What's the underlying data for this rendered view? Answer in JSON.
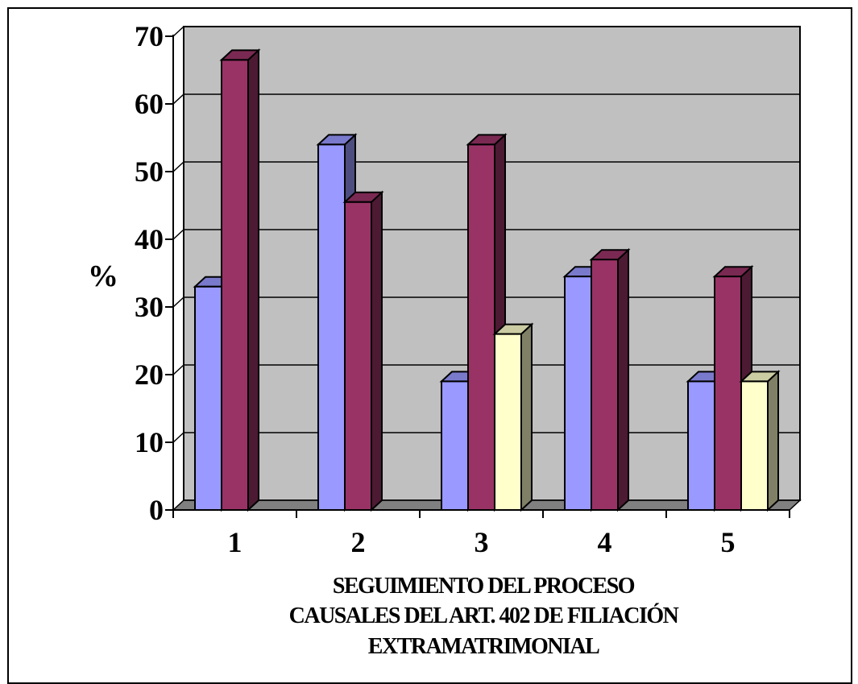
{
  "chart_data": {
    "type": "bar",
    "categories": [
      "1",
      "2",
      "3",
      "4",
      "5"
    ],
    "series": [
      {
        "values": [
          33,
          54,
          19,
          34.5,
          19
        ]
      },
      {
        "values": [
          66.5,
          45.5,
          54,
          37,
          34.5
        ]
      },
      {
        "values": [
          null,
          null,
          26,
          null,
          19
        ]
      }
    ],
    "ylim": [
      0,
      70
    ],
    "yticks": [
      "0",
      "10",
      "20",
      "30",
      "40",
      "50",
      "60",
      "70"
    ],
    "ylabel": "%",
    "xlabel_lines": [
      "SEGUIMIENTO DEL PROCESO",
      "CAUSALES DEL ART. 402 DE FILIACIÓN",
      "EXTRAMATRIMONIAL"
    ],
    "grid": true,
    "three_d": true,
    "colors": {
      "series": [
        "#9999ff",
        "#993366",
        "#ffffcc"
      ],
      "series_top": [
        "#7a7acc",
        "#7a2952",
        "#cccca3"
      ],
      "series_side": [
        "#4d4d80",
        "#4d1a33",
        "#808066"
      ],
      "plot_bg": "#c0c0c0",
      "floor": "#808080"
    }
  }
}
